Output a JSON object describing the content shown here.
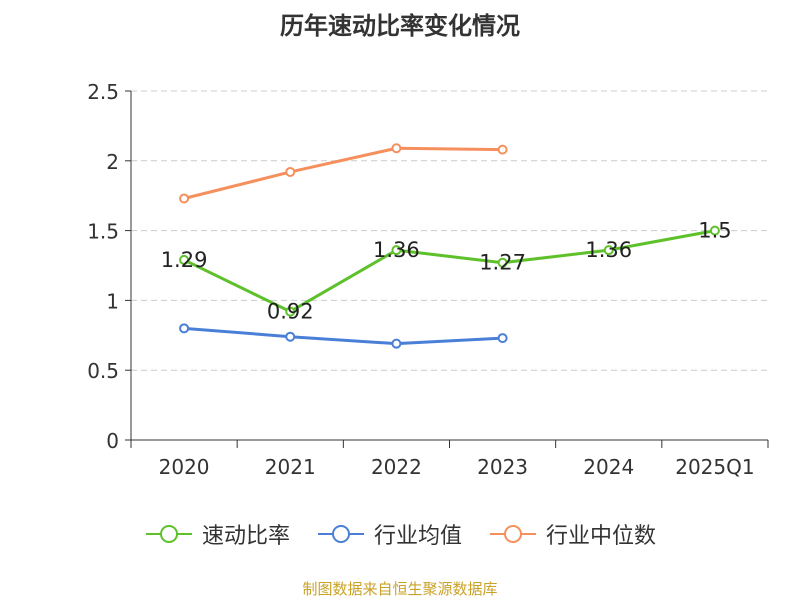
{
  "chart_data": {
    "type": "line",
    "title": "历年速动比率变化情况",
    "categories": [
      "2020",
      "2021",
      "2022",
      "2023",
      "2024",
      "2025Q1"
    ],
    "series": [
      {
        "name": "速动比率",
        "color": "#5ec12b",
        "values": [
          1.29,
          0.92,
          1.36,
          1.27,
          1.36,
          1.5
        ],
        "data_labels": [
          "1.29",
          "0.92",
          "1.36",
          "1.27",
          "1.36",
          "1.5"
        ]
      },
      {
        "name": "行业均值",
        "color": "#4a7fd8",
        "values": [
          0.8,
          0.74,
          0.69,
          0.73,
          null,
          null
        ]
      },
      {
        "name": "行业中位数",
        "color": "#f58f5c",
        "values": [
          1.73,
          1.92,
          2.09,
          2.08,
          null,
          null
        ]
      }
    ],
    "y_ticks": [
      "0",
      "0.5",
      "1",
      "1.5",
      "2",
      "2.5"
    ],
    "ylim": [
      0,
      2.5
    ],
    "grid": true,
    "legend_position": "bottom",
    "source": "制图数据来自恒生聚源数据库"
  }
}
